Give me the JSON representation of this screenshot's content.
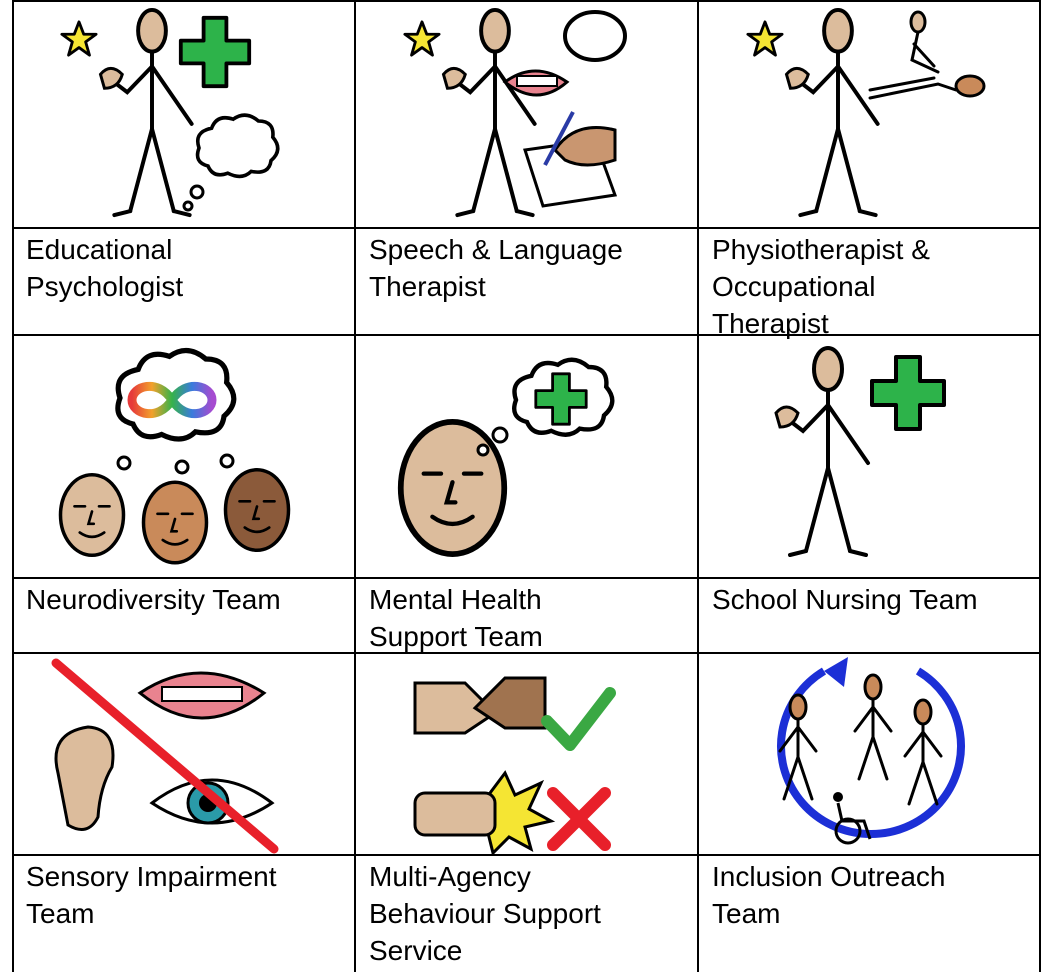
{
  "table": {
    "rows": [
      [
        [
          "Educational",
          "Psychologist"
        ],
        [
          "Speech & Language",
          "Therapist"
        ],
        [
          "Physiotherapist &",
          "Occupational",
          "Therapist"
        ]
      ],
      [
        [
          "Neurodiversity Team"
        ],
        [
          "Mental Health",
          "Support Team"
        ],
        [
          "School Nursing Team"
        ]
      ],
      [
        [
          "Sensory Impairment",
          "Team"
        ],
        [
          "Multi-Agency",
          "Behaviour Support",
          "Service"
        ],
        [
          "Inclusion Outreach",
          "Team"
        ]
      ]
    ]
  }
}
